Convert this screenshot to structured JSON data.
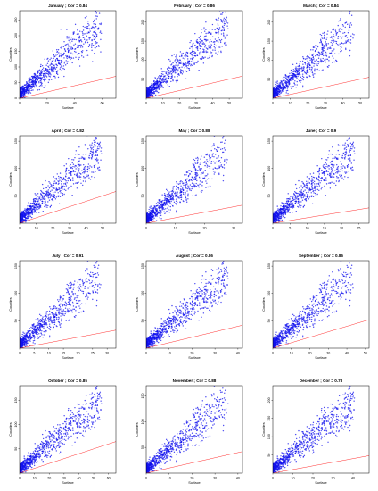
{
  "figure": {
    "background": "#ffffff",
    "point_color": "#1010ee",
    "line_color": "#ff3030",
    "axis_color": "#000000"
  },
  "chart_data": [
    {
      "type": "scatter",
      "title": "January ; Cor = 0.84",
      "xlabel": "Surface",
      "ylabel": "Counties",
      "xticks": [
        "0",
        "20",
        "40",
        "60"
      ],
      "yticks": [
        "0",
        "50",
        "100",
        "150",
        "200",
        "250"
      ],
      "xlim": [
        0,
        70
      ],
      "ylim": [
        0,
        280
      ],
      "reference_line": "y = x",
      "point_count_approx": 20000
    },
    {
      "type": "scatter",
      "title": "February ; Cor = 0.86",
      "xlabel": "Surface",
      "ylabel": "Counties",
      "xticks": [
        "0",
        "10",
        "20",
        "30",
        "40",
        "50"
      ],
      "yticks": [
        "50",
        "100",
        "150",
        "200"
      ],
      "xlim": [
        0,
        58
      ],
      "ylim": [
        0,
        230
      ],
      "reference_line": "y = x",
      "point_count_approx": 20000
    },
    {
      "type": "scatter",
      "title": "March ; Cor = 0.84",
      "xlabel": "Surface",
      "ylabel": "Counties",
      "xticks": [
        "0",
        "10",
        "20",
        "30",
        "40",
        "50"
      ],
      "yticks": [
        "50",
        "100",
        "150",
        "200"
      ],
      "xlim": [
        0,
        55
      ],
      "ylim": [
        0,
        230
      ],
      "reference_line": "y = x",
      "point_count_approx": 20000
    },
    {
      "type": "scatter",
      "title": "April ; Cor = 0.82",
      "xlabel": "Surface",
      "ylabel": "Counties",
      "xticks": [
        "0",
        "10",
        "20",
        "30",
        "40",
        "50"
      ],
      "yticks": [
        "50",
        "100",
        "150"
      ],
      "xlim": [
        0,
        58
      ],
      "ylim": [
        0,
        160
      ],
      "reference_line": "y = x",
      "point_count_approx": 15000
    },
    {
      "type": "scatter",
      "title": "May ; Cor = 0.88",
      "xlabel": "Surface",
      "ylabel": "Counties",
      "xticks": [
        "0",
        "10",
        "20",
        "30"
      ],
      "yticks": [
        "50",
        "100",
        "150"
      ],
      "xlim": [
        0,
        33
      ],
      "ylim": [
        0,
        160
      ],
      "reference_line": "y = x",
      "point_count_approx": 15000
    },
    {
      "type": "scatter",
      "title": "June ; Cor = 0.9",
      "xlabel": "Surface",
      "ylabel": "Counties",
      "xticks": [
        "0",
        "5",
        "10",
        "15",
        "20",
        "25"
      ],
      "yticks": [
        "50",
        "100",
        "150"
      ],
      "xlim": [
        0,
        28
      ],
      "ylim": [
        0,
        160
      ],
      "reference_line": "y = x",
      "point_count_approx": 15000
    },
    {
      "type": "scatter",
      "title": "July ; Cor = 0.91",
      "xlabel": "Surface",
      "ylabel": "Counties",
      "xticks": [
        "0",
        "5",
        "10",
        "15",
        "20",
        "25",
        "30"
      ],
      "yticks": [
        "50",
        "100",
        "150"
      ],
      "xlim": [
        0,
        33
      ],
      "ylim": [
        0,
        160
      ],
      "reference_line": "y = x",
      "point_count_approx": 15000
    },
    {
      "type": "scatter",
      "title": "August ; Cor = 0.86",
      "xlabel": "Surface",
      "ylabel": "Counties",
      "xticks": [
        "0",
        "10",
        "20",
        "30",
        "40"
      ],
      "yticks": [
        "50",
        "100",
        "150"
      ],
      "xlim": [
        0,
        42
      ],
      "ylim": [
        0,
        160
      ],
      "reference_line": "y = x",
      "point_count_approx": 15000
    },
    {
      "type": "scatter",
      "title": "September ; Cor = 0.86",
      "xlabel": "Surface",
      "ylabel": "Counties",
      "xticks": [
        "0",
        "10",
        "20",
        "30",
        "40",
        "50"
      ],
      "yticks": [
        "50",
        "100",
        "150"
      ],
      "xlim": [
        0,
        52
      ],
      "ylim": [
        0,
        160
      ],
      "reference_line": "y = x",
      "point_count_approx": 15000
    },
    {
      "type": "scatter",
      "title": "October ; Cor = 0.85",
      "xlabel": "Surface",
      "ylabel": "Counties",
      "xticks": [
        "0",
        "10",
        "20",
        "30",
        "40",
        "50",
        "60"
      ],
      "yticks": [
        "50",
        "100",
        "150"
      ],
      "xlim": [
        0,
        65
      ],
      "ylim": [
        0,
        180
      ],
      "reference_line": "y = x",
      "point_count_approx": 20000
    },
    {
      "type": "scatter",
      "title": "November ; Cor = 0.88",
      "xlabel": "Surface",
      "ylabel": "Counties",
      "xticks": [
        "0",
        "10",
        "20",
        "30",
        "40"
      ],
      "yticks": [
        "50",
        "100",
        "150"
      ],
      "xlim": [
        0,
        42
      ],
      "ylim": [
        0,
        170
      ],
      "reference_line": "y = x",
      "point_count_approx": 20000
    },
    {
      "type": "scatter",
      "title": "December ; Cor = 0.78",
      "xlabel": "Surface",
      "ylabel": "Counties",
      "xticks": [
        "0",
        "10",
        "20",
        "30",
        "40"
      ],
      "yticks": [
        "50",
        "100",
        "150",
        "200"
      ],
      "xlim": [
        0,
        48
      ],
      "ylim": [
        0,
        240
      ],
      "reference_line": "y = x",
      "point_count_approx": 20000
    }
  ]
}
